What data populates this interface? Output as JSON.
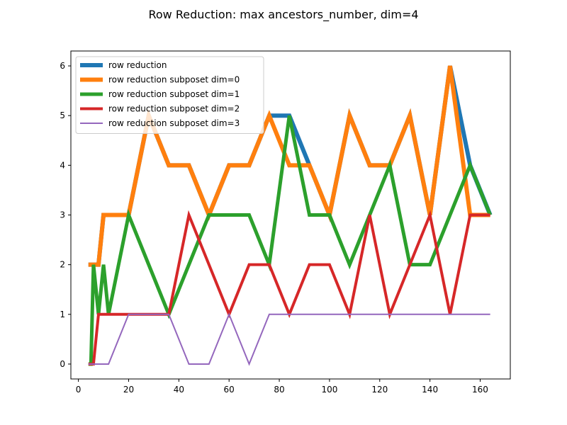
{
  "chart_data": {
    "type": "line",
    "title": "Row Reduction: max ancestors_number, dim=4",
    "xlabel": "",
    "ylabel": "",
    "xlim": [
      -3,
      172
    ],
    "ylim": [
      -0.3,
      6.3
    ],
    "xticks": [
      0,
      20,
      40,
      60,
      80,
      100,
      120,
      140,
      160
    ],
    "yticks": [
      0,
      1,
      2,
      3,
      4,
      5,
      6
    ],
    "legend_position": "upper-left",
    "grid": false,
    "series": [
      {
        "name": "row reduction",
        "color": "#1f77b4",
        "width": 6,
        "x": [
          4,
          8,
          10,
          12,
          20,
          28,
          36,
          44,
          52,
          60,
          68,
          76,
          84,
          92,
          100,
          108,
          116,
          124,
          132,
          140,
          148,
          156,
          164
        ],
        "y": [
          2,
          2,
          3,
          3,
          3,
          5,
          4,
          4,
          3,
          4,
          4,
          5,
          5,
          4,
          3,
          5,
          4,
          4,
          5,
          3,
          6,
          4,
          3
        ]
      },
      {
        "name": "row reduction subposet dim=0",
        "color": "#ff7f0e",
        "width": 6,
        "x": [
          4,
          8,
          10,
          12,
          20,
          28,
          36,
          44,
          52,
          60,
          68,
          76,
          84,
          92,
          100,
          108,
          116,
          124,
          132,
          140,
          148,
          156,
          164
        ],
        "y": [
          2,
          2,
          3,
          3,
          3,
          5,
          4,
          4,
          3,
          4,
          4,
          5,
          4,
          4,
          3,
          5,
          4,
          4,
          5,
          3,
          6,
          3,
          3
        ]
      },
      {
        "name": "row reduction subposet dim=1",
        "color": "#2ca02c",
        "width": 5,
        "x": [
          4,
          5,
          6,
          8,
          10,
          12,
          20,
          28,
          36,
          44,
          52,
          60,
          68,
          76,
          84,
          92,
          100,
          108,
          116,
          124,
          132,
          140,
          148,
          156,
          164
        ],
        "y": [
          0,
          0,
          2,
          1,
          2,
          1,
          3,
          2,
          1,
          2,
          3,
          3,
          3,
          2,
          5,
          3,
          3,
          2,
          3,
          4,
          2,
          2,
          3,
          4,
          3
        ]
      },
      {
        "name": "row reduction subposet dim=2",
        "color": "#d62728",
        "width": 4,
        "x": [
          4,
          6,
          8,
          10,
          12,
          20,
          28,
          36,
          44,
          52,
          60,
          68,
          76,
          84,
          92,
          100,
          108,
          116,
          124,
          132,
          140,
          148,
          156,
          164
        ],
        "y": [
          0,
          0,
          1,
          1,
          1,
          1,
          1,
          1,
          3,
          2,
          1,
          2,
          2,
          1,
          2,
          2,
          1,
          3,
          1,
          2,
          3,
          1,
          3,
          3
        ]
      },
      {
        "name": "row reduction subposet dim=3",
        "color": "#9467bd",
        "width": 2,
        "x": [
          4,
          6,
          8,
          12,
          20,
          28,
          36,
          44,
          52,
          60,
          68,
          76,
          84,
          92,
          100,
          108,
          116,
          124,
          132,
          140,
          148,
          156,
          164
        ],
        "y": [
          0,
          0,
          0,
          0,
          1,
          1,
          1,
          0,
          0,
          1,
          0,
          1,
          1,
          1,
          1,
          1,
          1,
          1,
          1,
          1,
          1,
          1,
          1
        ]
      }
    ]
  }
}
